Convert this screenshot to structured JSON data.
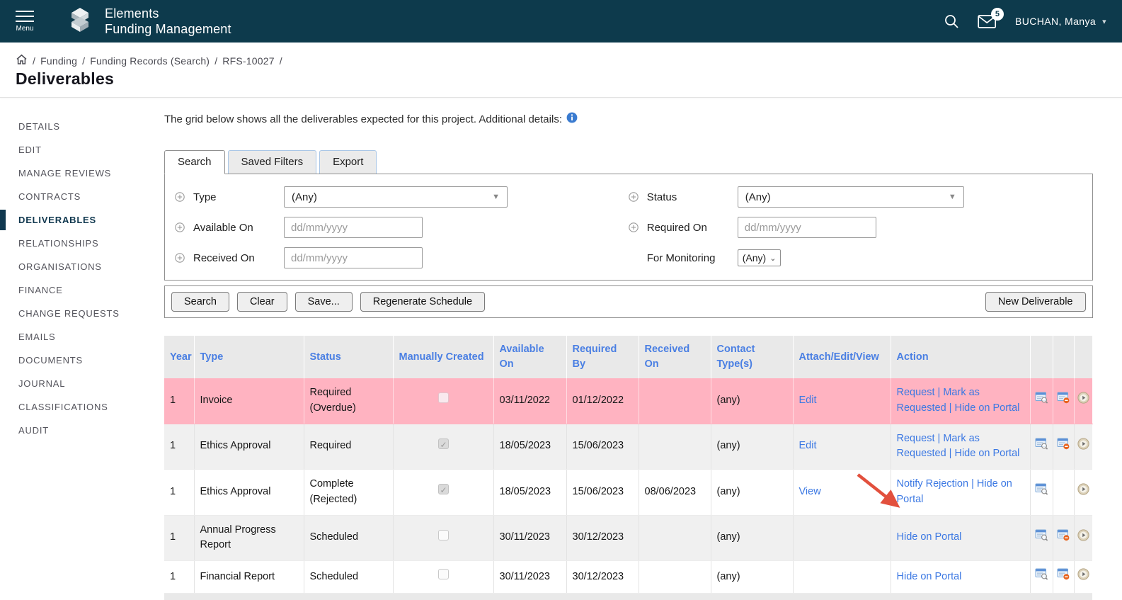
{
  "colors": {
    "header_bg": "#0d3a4c",
    "link_blue": "#3b78e3",
    "table_header_blue": "#4a7fe3",
    "overdue_row_pink": "#ffb3c1",
    "annotation_red": "#e2503d"
  },
  "header": {
    "menu_label": "Menu",
    "brand_line1": "Elements",
    "brand_line2": "Funding Management",
    "notification_count": "5",
    "user_name": "BUCHAN, Manya",
    "icons": [
      "hamburger-icon",
      "logo-icon",
      "search-icon",
      "mail-icon",
      "chevron-down-icon"
    ]
  },
  "breadcrumb": {
    "separator": "/",
    "items": [
      "Funding",
      "Funding Records (Search)",
      "RFS-10027"
    ]
  },
  "page_title": "Deliverables",
  "sidebar": {
    "items": [
      {
        "label": "DETAILS",
        "active": false
      },
      {
        "label": "EDIT",
        "active": false
      },
      {
        "label": "MANAGE REVIEWS",
        "active": false
      },
      {
        "label": "CONTRACTS",
        "active": false
      },
      {
        "label": "DELIVERABLES",
        "active": true
      },
      {
        "label": "RELATIONSHIPS",
        "active": false
      },
      {
        "label": "ORGANISATIONS",
        "active": false
      },
      {
        "label": "FINANCE",
        "active": false
      },
      {
        "label": "CHANGE REQUESTS",
        "active": false
      },
      {
        "label": "EMAILS",
        "active": false
      },
      {
        "label": "DOCUMENTS",
        "active": false
      },
      {
        "label": "JOURNAL",
        "active": false
      },
      {
        "label": "CLASSIFICATIONS",
        "active": false
      },
      {
        "label": "AUDIT",
        "active": false
      }
    ]
  },
  "main": {
    "intro_text": "The grid below shows all the deliverables expected for this project. Additional details:",
    "info_icon": "info-icon",
    "tabs": [
      {
        "label": "Search",
        "active": true
      },
      {
        "label": "Saved Filters",
        "active": false
      },
      {
        "label": "Export",
        "active": false
      }
    ],
    "filters": {
      "type": {
        "label": "Type",
        "value": "(Any)"
      },
      "status": {
        "label": "Status",
        "value": "(Any)"
      },
      "available_on": {
        "label": "Available On",
        "value": "",
        "placeholder": "dd/mm/yyyy"
      },
      "required_on": {
        "label": "Required On",
        "value": "",
        "placeholder": "dd/mm/yyyy"
      },
      "received_on": {
        "label": "Received On",
        "value": "",
        "placeholder": "dd/mm/yyyy"
      },
      "for_monitoring": {
        "label": "For Monitoring",
        "value": "(Any)"
      }
    },
    "buttons": {
      "search": "Search",
      "clear": "Clear",
      "save": "Save...",
      "regenerate": "Regenerate Schedule",
      "new_deliverable": "New Deliverable"
    },
    "table": {
      "columns": [
        "Year",
        "Type",
        "Status",
        "Manually Created",
        "Available On",
        "Required By",
        "Received On",
        "Contact Type(s)",
        "Attach/Edit/View",
        "Action"
      ],
      "action_separator": "|",
      "rows": [
        {
          "year": "1",
          "type": "Invoice",
          "status": "Required (Overdue)",
          "manually_created": false,
          "available_on": "03/11/2022",
          "required_by": "01/12/2022",
          "received_on": "",
          "contact_types": "(any)",
          "attach_edit_view": "Edit",
          "actions": [
            "Request",
            "Mark as Requested",
            "Hide on Portal"
          ],
          "icons": {
            "view": true,
            "remove": true,
            "history": true
          },
          "highlight": "overdue"
        },
        {
          "year": "1",
          "type": "Ethics Approval",
          "status": "Required",
          "manually_created": true,
          "available_on": "18/05/2023",
          "required_by": "15/06/2023",
          "received_on": "",
          "contact_types": "(any)",
          "attach_edit_view": "Edit",
          "actions": [
            "Request",
            "Mark as Requested",
            "Hide on Portal"
          ],
          "icons": {
            "view": true,
            "remove": true,
            "history": true
          },
          "highlight": "shade"
        },
        {
          "year": "1",
          "type": "Ethics Approval",
          "status": "Complete (Rejected)",
          "manually_created": true,
          "available_on": "18/05/2023",
          "required_by": "15/06/2023",
          "received_on": "08/06/2023",
          "contact_types": "(any)",
          "attach_edit_view": "View",
          "actions": [
            "Notify Rejection",
            "Hide on Portal"
          ],
          "icons": {
            "view": true,
            "remove": false,
            "history": true
          },
          "highlight": ""
        },
        {
          "year": "1",
          "type": "Annual Progress Report",
          "status": "Scheduled",
          "manually_created": false,
          "available_on": "30/11/2023",
          "required_by": "30/12/2023",
          "received_on": "",
          "contact_types": "(any)",
          "attach_edit_view": "",
          "actions": [
            "Hide on Portal"
          ],
          "icons": {
            "view": true,
            "remove": true,
            "history": true
          },
          "highlight": "shade"
        },
        {
          "year": "1",
          "type": "Financial Report",
          "status": "Scheduled",
          "manually_created": false,
          "available_on": "30/11/2023",
          "required_by": "30/12/2023",
          "received_on": "",
          "contact_types": "(any)",
          "attach_edit_view": "",
          "actions": [
            "Hide on Portal"
          ],
          "icons": {
            "view": true,
            "remove": true,
            "history": true
          },
          "highlight": ""
        }
      ]
    }
  }
}
